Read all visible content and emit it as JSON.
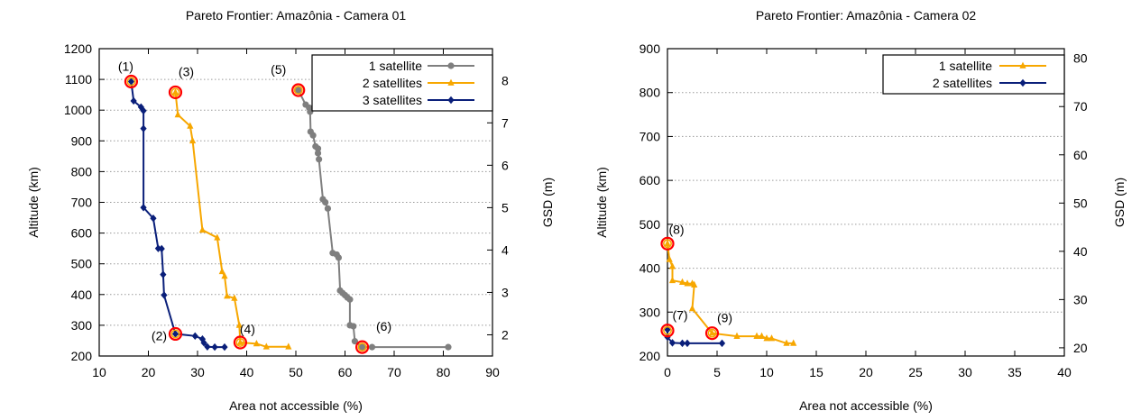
{
  "chart_data": [
    {
      "type": "line",
      "title": "Pareto Frontier: Amazônia - Camera 01",
      "xlabel": "Area not accessible (%)",
      "ylabel": "Altitude (km)",
      "y2label": "GSD (m)",
      "xlim": [
        10,
        90
      ],
      "ylim": [
        200,
        1200
      ],
      "y2lim": [
        1.5,
        8.75
      ],
      "x_ticks": [
        10,
        20,
        30,
        40,
        50,
        60,
        70,
        80,
        90
      ],
      "y_ticks": [
        200,
        300,
        400,
        500,
        600,
        700,
        800,
        900,
        1000,
        1100,
        1200
      ],
      "y2_ticks": [
        2,
        3,
        4,
        5,
        6,
        7,
        8
      ],
      "grid": "horizontal dotted",
      "legend_position": "top-right",
      "series": [
        {
          "name": "1 satellite",
          "color": "#7f7f7f",
          "marker": "circle",
          "points": [
            [
              50.5,
              1065
            ],
            [
              52,
              1018
            ],
            [
              52.7,
              1008
            ],
            [
              52.9,
              995
            ],
            [
              53,
              930
            ],
            [
              53.5,
              918
            ],
            [
              54,
              882
            ],
            [
              54.5,
              875
            ],
            [
              54.5,
              860
            ],
            [
              54.7,
              840
            ],
            [
              55.5,
              710
            ],
            [
              56,
              700
            ],
            [
              56.5,
              680
            ],
            [
              57.5,
              535
            ],
            [
              58.3,
              530
            ],
            [
              58.7,
              520
            ],
            [
              59,
              413
            ],
            [
              59.5,
              405
            ],
            [
              60,
              398
            ],
            [
              60.5,
              390
            ],
            [
              61,
              384
            ],
            [
              61,
              300
            ],
            [
              61.7,
              297
            ],
            [
              62,
              248
            ],
            [
              63.5,
              229
            ],
            [
              65.5,
              229
            ],
            [
              81,
              229
            ]
          ]
        },
        {
          "name": "2 satellites",
          "color": "#f7a700",
          "marker": "triangle",
          "points": [
            [
              25.5,
              1058
            ],
            [
              26,
              985
            ],
            [
              28.5,
              948
            ],
            [
              29,
              900
            ],
            [
              31,
              610
            ],
            [
              34,
              585
            ],
            [
              35,
              475
            ],
            [
              35.5,
              460
            ],
            [
              36,
              395
            ],
            [
              37.5,
              388
            ],
            [
              38.5,
              300
            ],
            [
              38.7,
              244
            ],
            [
              42,
              240
            ],
            [
              44,
              230
            ],
            [
              48.5,
              230
            ]
          ]
        },
        {
          "name": "3 satellites",
          "color": "#0a1f7a",
          "marker": "diamond",
          "points": [
            [
              16.5,
              1093
            ],
            [
              17,
              1030
            ],
            [
              18.5,
              1010
            ],
            [
              19,
              998
            ],
            [
              19,
              940
            ],
            [
              19,
              683
            ],
            [
              21,
              648
            ],
            [
              22,
              550
            ],
            [
              22.7,
              549
            ],
            [
              23,
              465
            ],
            [
              23.2,
              398
            ],
            [
              25.5,
              272
            ],
            [
              29.5,
              265
            ],
            [
              31,
              255
            ],
            [
              31.3,
              243
            ],
            [
              32,
              230
            ],
            [
              33.5,
              229
            ],
            [
              35.5,
              229
            ]
          ]
        }
      ],
      "highlights": [
        {
          "label": "(1)",
          "x": 16.5,
          "y": 1093
        },
        {
          "label": "(2)",
          "x": 25.5,
          "y": 272
        },
        {
          "label": "(3)",
          "x": 25.5,
          "y": 1058
        },
        {
          "label": "(4)",
          "x": 38.7,
          "y": 244
        },
        {
          "label": "(5)",
          "x": 50.5,
          "y": 1065
        },
        {
          "label": "(6)",
          "x": 63.5,
          "y": 229
        }
      ]
    },
    {
      "type": "line",
      "title": "Pareto Frontier: Amazônia - Camera 02",
      "xlabel": "Area not accessible (%)",
      "ylabel": "Altitude (km)",
      "y2label": "GSD (m)",
      "xlim": [
        0,
        40
      ],
      "ylim": [
        200,
        900
      ],
      "y2lim": [
        18.3,
        82
      ],
      "x_ticks": [
        0,
        5,
        10,
        15,
        20,
        25,
        30,
        35,
        40
      ],
      "y_ticks": [
        200,
        300,
        400,
        500,
        600,
        700,
        800,
        900
      ],
      "y2_ticks": [
        20,
        30,
        40,
        50,
        60,
        70,
        80
      ],
      "grid": "horizontal dotted",
      "legend_position": "top-right",
      "series": [
        {
          "name": "1 satellite",
          "color": "#f7a700",
          "marker": "triangle",
          "points": [
            [
              0,
              456
            ],
            [
              0.2,
              420
            ],
            [
              0.5,
              404
            ],
            [
              0.5,
              372
            ],
            [
              1.5,
              368
            ],
            [
              2,
              365
            ],
            [
              2.5,
              365
            ],
            [
              2.7,
              362
            ],
            [
              2.5,
              308
            ],
            [
              4.5,
              252
            ],
            [
              7,
              245
            ],
            [
              9,
              245
            ],
            [
              9.5,
              245
            ],
            [
              10,
              240
            ],
            [
              10.5,
              240
            ],
            [
              12,
              229
            ],
            [
              12.7,
              229
            ]
          ]
        },
        {
          "name": "2 satellites",
          "color": "#0a1f7a",
          "marker": "diamond",
          "points": [
            [
              0,
              260
            ],
            [
              0,
              243
            ],
            [
              0.5,
              230
            ],
            [
              1.5,
              229
            ],
            [
              2,
              229
            ],
            [
              5.5,
              229
            ]
          ]
        }
      ],
      "highlights": [
        {
          "label": "(7)",
          "x": 0,
          "y": 258
        },
        {
          "label": "(8)",
          "x": 0,
          "y": 456
        },
        {
          "label": "(9)",
          "x": 4.5,
          "y": 252
        }
      ]
    }
  ]
}
